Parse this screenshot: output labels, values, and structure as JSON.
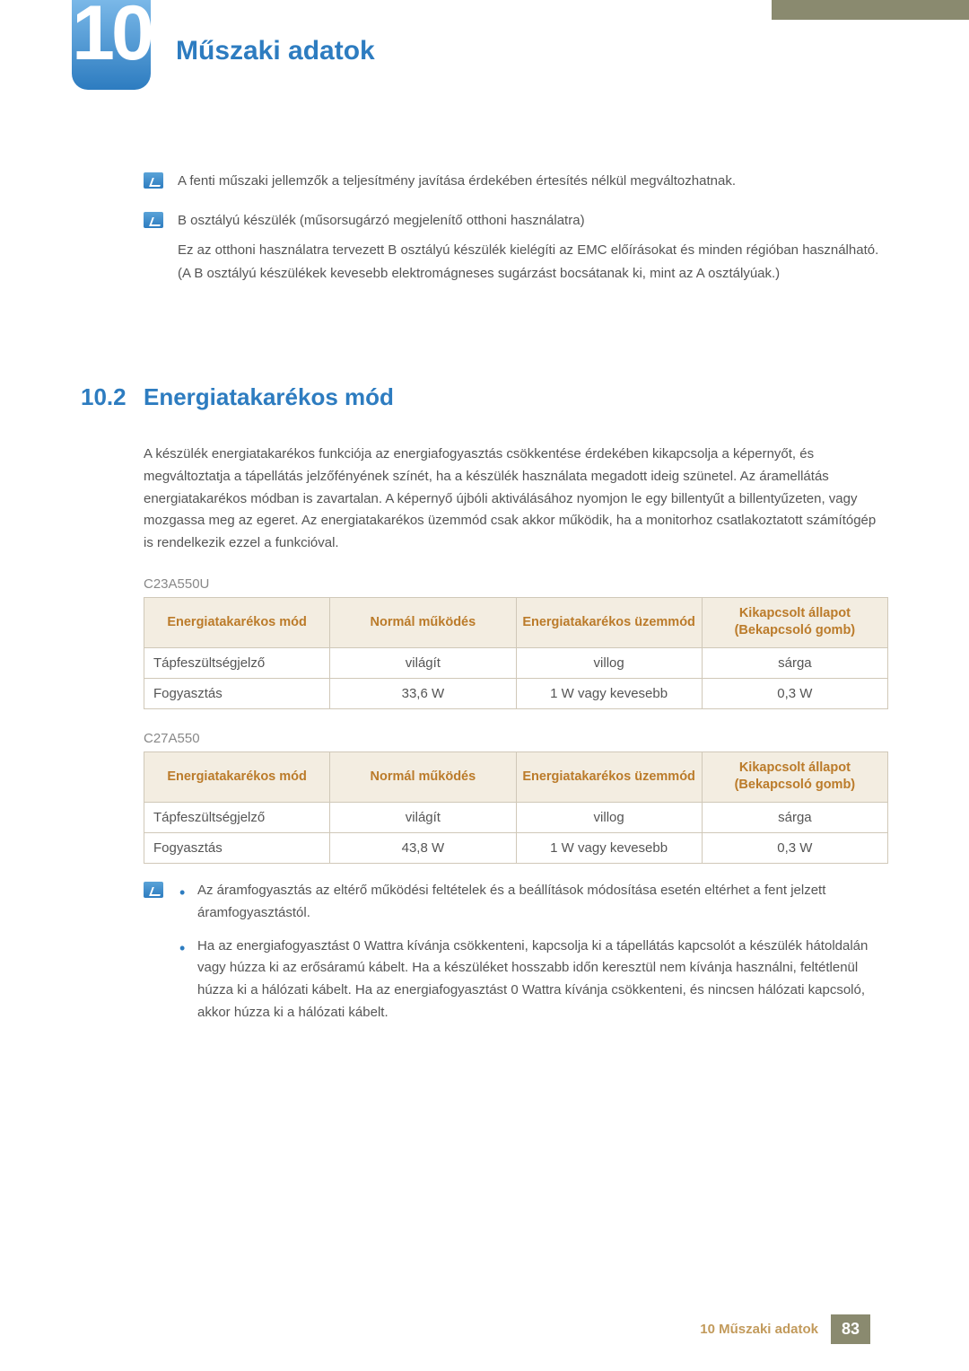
{
  "chapter": {
    "number": "10",
    "title": "Műszaki adatok"
  },
  "notes": {
    "n1": "A fenti műszaki jellemzők a teljesítmény javítása érdekében értesítés nélkül megváltozhatnak.",
    "n2_title": "B osztályú készülék (műsorsugárzó megjelenítő otthoni használatra)",
    "n2_body": "Ez az otthoni használatra tervezett B osztályú készülék kielégíti az EMC előírásokat és minden régióban használható. (A B osztályú készülékek kevesebb elektromágneses sugárzást bocsátanak ki, mint az A osztályúak.)"
  },
  "section": {
    "num": "10.2",
    "title": "Energiatakarékos mód",
    "para": "A készülék energiatakarékos funkciója az energiafogyasztás csökkentése érdekében kikapcsolja a képernyőt, és megváltoztatja a tápellátás jelzőfényének színét, ha a készülék használata megadott ideig szünetel. Az áramellátás energiatakarékos módban is zavartalan. A képernyő újbóli aktiválásához nyomjon le egy billentyűt a billentyűzeten, vagy mozgassa meg az egeret. Az energiatakarékos üzemmód csak akkor működik, ha a monitorhoz csatlakoztatott számítógép is rendelkezik ezzel a funkcióval."
  },
  "models": {
    "m1": "C23A550U",
    "m2": "C27A550"
  },
  "table_headers": {
    "h1": "Energiatakarékos mód",
    "h2": "Normál működés",
    "h3": "Energiatakarékos üzemmód",
    "h4": "Kikapcsolt állapot (Bekapcsoló gomb)"
  },
  "t1": {
    "r1c1": "Tápfeszültségjelző",
    "r1c2": "világít",
    "r1c3": "villog",
    "r1c4": "sárga",
    "r2c1": "Fogyasztás",
    "r2c2": "33,6 W",
    "r2c3": "1 W vagy kevesebb",
    "r2c4": "0,3 W"
  },
  "t2": {
    "r1c1": "Tápfeszültségjelző",
    "r1c2": "világít",
    "r1c3": "villog",
    "r1c4": "sárga",
    "r2c1": "Fogyasztás",
    "r2c2": "43,8 W",
    "r2c3": "1 W vagy kevesebb",
    "r2c4": "0,3 W"
  },
  "bullets": {
    "b1": "Az áramfogyasztás az eltérő működési feltételek és a beállítások módosítása esetén eltérhet a fent jelzett áramfogyasztástól.",
    "b2": "Ha az energiafogyasztást 0 Wattra kívánja csökkenteni, kapcsolja ki a tápellátás kapcsolót a készülék hátoldalán vagy húzza ki az erősáramú kábelt. Ha a készüléket hosszabb időn keresztül nem kívánja használni, feltétlenül húzza ki a hálózati kábelt. Ha az energiafogyasztást 0 Wattra kívánja csökkenteni, és nincsen hálózati kapcsoló, akkor húzza ki a hálózati kábelt."
  },
  "footer": {
    "label": "10 Műszaki adatok",
    "page": "83"
  },
  "colors": {
    "accent_blue": "#2d7cc0",
    "header_bg": "#f3ede1",
    "header_text": "#bb7b2a",
    "border": "#d0c8b8",
    "topbar": "#8a8a6f",
    "footer_label": "#c29a5b"
  }
}
